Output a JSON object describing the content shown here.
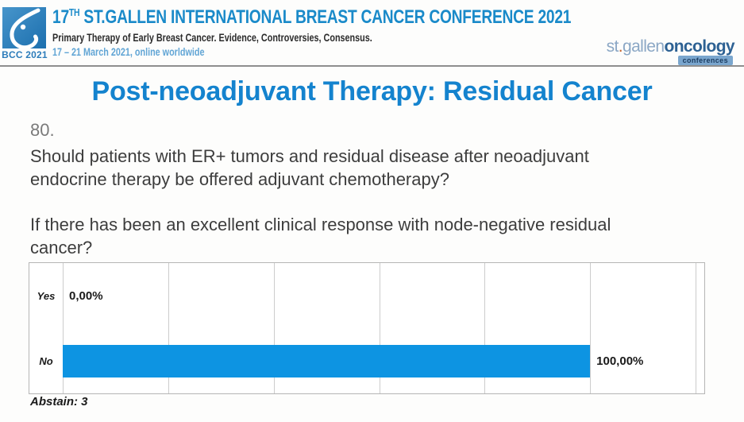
{
  "header": {
    "logo_caption": "BCC 2021",
    "title_number": "17",
    "title_sup": "TH",
    "title_rest": "ST.GALLEN INTERNATIONAL BREAST CANCER CONFERENCE 2021",
    "subtitle": "Primary Therapy of Early Breast Cancer. Evidence, Controversies, Consensus.",
    "date_line": "17 – 21 March 2021, online worldwide",
    "brand": {
      "st": "st",
      "dot": ".",
      "gallen": "gallen",
      "oncology": "oncology",
      "tag": "conferences"
    }
  },
  "slide": {
    "title": "Post-neoadjuvant Therapy: Residual Cancer",
    "question": {
      "number": "80.",
      "lines": [
        "Should patients with ER+ tumors and residual disease after neoadjuvant",
        "endocrine therapy be offered adjuvant chemotherapy?"
      ]
    },
    "condition": {
      "lines": [
        "If there has been an excellent clinical response with node-negative residual",
        "cancer?"
      ]
    }
  },
  "chart_data": {
    "type": "bar",
    "orientation": "horizontal",
    "title": "",
    "categories": [
      "Yes",
      "No"
    ],
    "values": [
      0,
      100
    ],
    "value_labels": [
      "0,00%",
      "100,00%"
    ],
    "xlim": [
      0,
      120
    ],
    "grid_step": 20,
    "grid": true,
    "legend": false,
    "bar_color": "#0d94e2",
    "annotation": "Abstain: 3"
  },
  "colors": {
    "header_blue": "#1a8ac9",
    "title_blue": "#1483ce",
    "date_blue": "#61a5d5",
    "bar_blue": "#0d94e2",
    "brand_light_blue": "#8ba7c5",
    "brand_dark_blue": "#2d6193",
    "brand_dot_orange": "#c4602a"
  }
}
